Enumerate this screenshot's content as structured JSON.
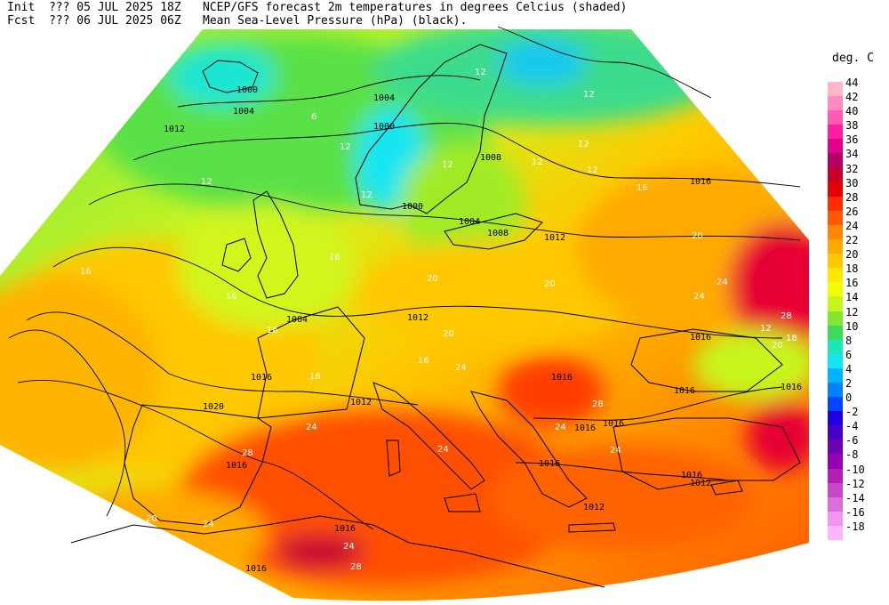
{
  "header": {
    "init_label": "Init",
    "init_value": "??? 05 JUL 2025 18Z",
    "fcst_label": "Fcst",
    "fcst_value": "??? 06 JUL 2025 06Z",
    "title_line1": "NCEP/GFS forecast 2m temperatures in degrees Celcius (shaded)",
    "title_line2": "Mean Sea-Level Pressure (hPa) (black)."
  },
  "legend": {
    "unit": "deg. C",
    "levels": [
      {
        "value": "44",
        "color": "#ffb6c8"
      },
      {
        "value": "42",
        "color": "#ff8cc0"
      },
      {
        "value": "40",
        "color": "#ff5ab4"
      },
      {
        "value": "38",
        "color": "#ff1e9e"
      },
      {
        "value": "36",
        "color": "#e0008a"
      },
      {
        "value": "34",
        "color": "#b40060"
      },
      {
        "value": "32",
        "color": "#c80028"
      },
      {
        "value": "30",
        "color": "#e60000"
      },
      {
        "value": "28",
        "color": "#ff2d00"
      },
      {
        "value": "26",
        "color": "#ff5a00"
      },
      {
        "value": "24",
        "color": "#ff8700"
      },
      {
        "value": "22",
        "color": "#ffaa00"
      },
      {
        "value": "20",
        "color": "#ffc800"
      },
      {
        "value": "18",
        "color": "#ffe600"
      },
      {
        "value": "16",
        "color": "#f0ff00"
      },
      {
        "value": "14",
        "color": "#c8f51e"
      },
      {
        "value": "12",
        "color": "#82e632"
      },
      {
        "value": "10",
        "color": "#3cdc5a"
      },
      {
        "value": "8",
        "color": "#1ee6b4"
      },
      {
        "value": "6",
        "color": "#14e6f0"
      },
      {
        "value": "4",
        "color": "#00b4ff"
      },
      {
        "value": "2",
        "color": "#0082ff"
      },
      {
        "value": "0",
        "color": "#0046ff"
      },
      {
        "value": "-2",
        "color": "#1e00e6"
      },
      {
        "value": "-4",
        "color": "#4600c8"
      },
      {
        "value": "-6",
        "color": "#6e00b4"
      },
      {
        "value": "-8",
        "color": "#9600b4"
      },
      {
        "value": "-10",
        "color": "#b41eb4"
      },
      {
        "value": "-12",
        "color": "#c846c8"
      },
      {
        "value": "-14",
        "color": "#dc6edc"
      },
      {
        "value": "-16",
        "color": "#f096f0"
      },
      {
        "value": "-18",
        "color": "#ffb4ff"
      }
    ]
  },
  "map": {
    "isobar_labels": [
      "1000",
      "1004",
      "1004",
      "1012",
      "1004",
      "1000",
      "1000",
      "1004",
      "1008",
      "1012",
      "1016",
      "1008",
      "1012",
      "1016",
      "1016",
      "1016",
      "1012",
      "1020",
      "1016",
      "1016",
      "1016",
      "1016",
      "1016",
      "1016",
      "1016",
      "1012",
      "1012",
      "1016",
      "1016"
    ],
    "temperature_labels": [
      "12",
      "12",
      "12",
      "12",
      "6",
      "12",
      "12",
      "12",
      "12",
      "12",
      "12",
      "16",
      "16",
      "16",
      "16",
      "16",
      "16",
      "16",
      "18",
      "20",
      "20",
      "20",
      "20",
      "20",
      "20",
      "24",
      "24",
      "24",
      "24",
      "24",
      "24",
      "24",
      "24",
      "24",
      "24",
      "28",
      "28",
      "28",
      "28"
    ]
  }
}
